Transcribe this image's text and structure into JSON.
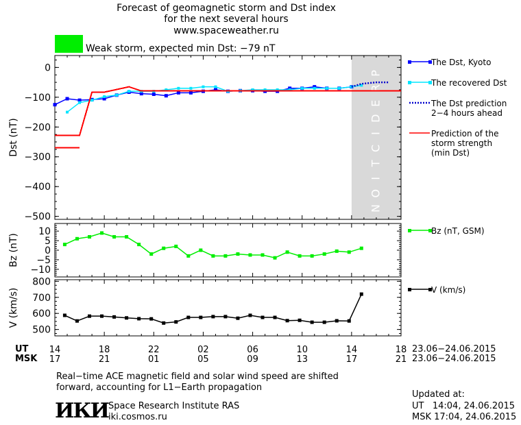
{
  "header": {
    "title_line1": "Forecast of geomagnetic storm and Dst index",
    "title_line2": "for the next several hours",
    "website": "www.spaceweather.ru",
    "storm_label": "Weak storm, expected min Dst: −79 nT",
    "storm_color": "#00ee00"
  },
  "prediction_band": {
    "label": "PREDICTION",
    "color": "#d9d9d9",
    "from_hour": 38.0,
    "to_hour": 42.0
  },
  "time_axis": {
    "ut_label": "UT",
    "msk_label": "MSK",
    "ut_ticks": [
      "14",
      "18",
      "22",
      "02",
      "06",
      "10",
      "14",
      "18"
    ],
    "msk_ticks": [
      "17",
      "21",
      "01",
      "05",
      "09",
      "13",
      "17",
      "21"
    ],
    "tick_hours": [
      14,
      18,
      22,
      26,
      30,
      34,
      38,
      42
    ],
    "ut_date_range": "23.06−24.06.2015",
    "msk_date_range": "23.06−24.06.2015"
  },
  "chart_data": [
    {
      "type": "line",
      "ylabel": "Dst (nT)",
      "ylim": [
        -510,
        40
      ],
      "yticks": [
        0,
        -100,
        -200,
        -300,
        -400,
        -500
      ],
      "ytick_labels": [
        "0",
        "−100",
        "−200",
        "−300",
        "−400",
        "−500"
      ],
      "legend": [
        {
          "label": "The Dst, Kyoto",
          "color": "#0000ff",
          "style": "line-square"
        },
        {
          "label": "The recovered Dst",
          "color": "#00e5ff",
          "style": "line-square"
        },
        {
          "label": "The Dst prediction\n2−4 hours ahead",
          "color": "#0000cc",
          "style": "dotted"
        },
        {
          "label": "Prediction of the\nstorm strength\n(min Dst)",
          "color": "#ff0000",
          "style": "line"
        }
      ],
      "series": [
        {
          "name": "The Dst, Kyoto",
          "color": "#0000ff",
          "x": [
            14.0,
            15.0,
            16.0,
            17.0,
            18.0,
            19.0,
            20.0,
            21.0,
            22.0,
            23.0,
            24.0,
            25.0,
            26.0,
            27.0,
            28.0,
            29.0,
            30.0,
            31.0,
            32.0,
            33.0,
            34.0,
            35.0,
            36.0,
            37.0,
            38.0
          ],
          "y": [
            -125,
            -105,
            -110,
            -108,
            -105,
            -93,
            -83,
            -88,
            -90,
            -95,
            -85,
            -85,
            -80,
            -75,
            -80,
            -78,
            -78,
            -80,
            -80,
            -70,
            -70,
            -65,
            -70,
            -70,
            -65
          ]
        },
        {
          "name": "The recovered Dst",
          "color": "#00e5ff",
          "x": [
            15.0,
            16.0,
            17.0,
            18.0,
            19.0,
            20.0,
            21.0,
            22.0,
            23.0,
            24.0,
            25.0,
            26.0,
            27.0,
            28.0,
            29.0,
            30.0,
            31.0,
            32.0,
            33.0,
            34.0,
            35.0,
            36.0,
            37.0,
            38.0,
            38.8
          ],
          "y": [
            -150,
            -118,
            -110,
            -98,
            -93,
            -80,
            -80,
            -80,
            -75,
            -70,
            -70,
            -65,
            -65,
            -80,
            -78,
            -75,
            -75,
            -75,
            -75,
            -70,
            -70,
            -70,
            -70,
            -65,
            -60
          ]
        },
        {
          "name": "The Dst prediction 2−4 hours ahead",
          "color": "#0000cc",
          "x": [
            38.0,
            38.8,
            40.0,
            41.0
          ],
          "y": [
            -65,
            -55,
            -50,
            -50
          ]
        },
        {
          "name": "Prediction of the storm strength (min Dst)",
          "color": "#ff0000",
          "x": [
            14.0,
            16.0,
            17.0,
            18.0,
            20.0,
            21.0,
            42.0
          ],
          "y": [
            -228,
            -228,
            -83,
            -83,
            -65,
            -79,
            -79
          ]
        },
        {
          "name": "Prediction of the storm strength (min Dst) earlier",
          "color": "#ff0000",
          "x": [
            14.0,
            16.0
          ],
          "y": [
            -270,
            -270
          ]
        }
      ]
    },
    {
      "type": "line",
      "ylabel": "Bz (nT)",
      "ylim": [
        -14,
        14
      ],
      "yticks": [
        10,
        5,
        0,
        -5,
        -10
      ],
      "ytick_labels": [
        "10",
        "5",
        "0",
        "−5",
        "−10"
      ],
      "legend": [
        {
          "label": "Bz (nT, GSM)",
          "color": "#00ee00",
          "style": "line-square"
        }
      ],
      "series": [
        {
          "name": "Bz (nT, GSM)",
          "color": "#00ee00",
          "x": [
            14.8,
            15.8,
            16.8,
            17.8,
            18.8,
            19.8,
            20.8,
            21.8,
            22.8,
            23.8,
            24.8,
            25.8,
            26.8,
            27.8,
            28.8,
            29.8,
            30.8,
            31.8,
            32.8,
            33.8,
            34.8,
            35.8,
            36.8,
            37.8,
            38.8
          ],
          "y": [
            3,
            6,
            7,
            9,
            7,
            7,
            3,
            -2,
            1,
            2,
            -3,
            0,
            -3,
            -3,
            -2,
            -2.5,
            -2.5,
            -4,
            -1,
            -3,
            -3,
            -2,
            -0.5,
            -1,
            1
          ]
        }
      ]
    },
    {
      "type": "line",
      "ylabel": "V (km/s)",
      "ylim": [
        460,
        810
      ],
      "yticks": [
        800,
        700,
        600,
        500
      ],
      "ytick_labels": [
        "800",
        "700",
        "600",
        "500"
      ],
      "legend": [
        {
          "label": "V (km/s)",
          "color": "#000000",
          "style": "line-square"
        }
      ],
      "series": [
        {
          "name": "V (km/s)",
          "color": "#000000",
          "x": [
            14.8,
            15.8,
            16.8,
            17.8,
            18.8,
            19.8,
            20.8,
            21.8,
            22.8,
            23.8,
            24.8,
            25.8,
            26.8,
            27.8,
            28.8,
            29.8,
            30.8,
            31.8,
            32.8,
            33.8,
            34.8,
            35.8,
            36.8,
            37.8,
            38.8
          ],
          "y": [
            588,
            553,
            583,
            583,
            578,
            572,
            567,
            566,
            540,
            547,
            575,
            575,
            580,
            580,
            570,
            588,
            575,
            575,
            555,
            557,
            545,
            545,
            554,
            553,
            720
          ]
        }
      ]
    }
  ],
  "footer": {
    "note_line1": "Real−time ACE magnetic field and solar wind speed are shifted",
    "note_line2": "forward, accounting for L1−Earth propagation",
    "logo_text": "ИКИ",
    "institute": "Space Research Institute RAS",
    "institute_url": "iki.cosmos.ru",
    "updated_label": "Updated at:",
    "updated_ut": "UT   14:04, 24.06.2015",
    "updated_msk": "MSK 17:04, 24.06.2015"
  }
}
